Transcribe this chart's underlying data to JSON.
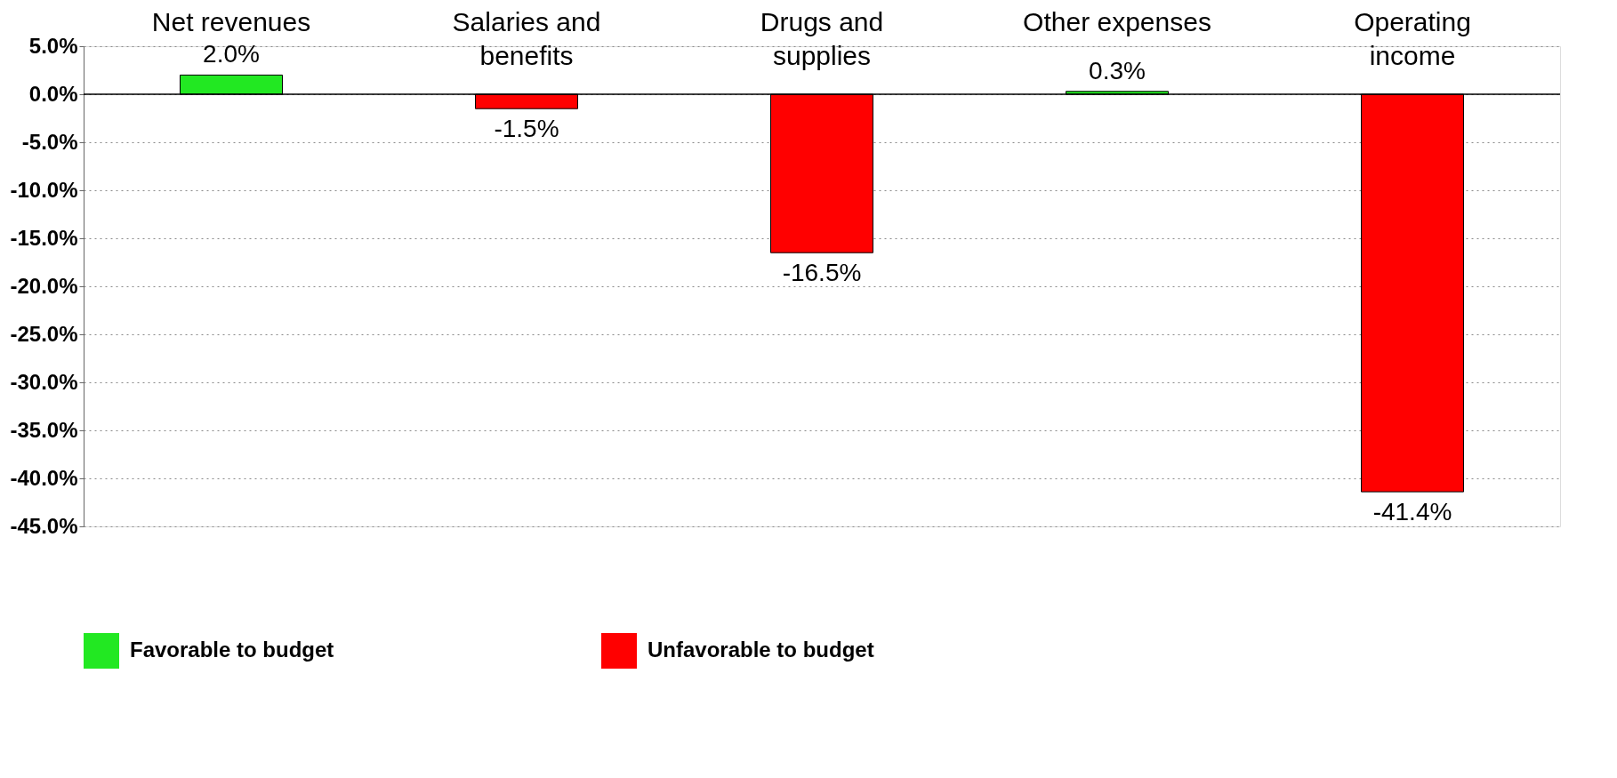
{
  "chart_data": {
    "type": "bar",
    "categories": [
      "Net revenues",
      "Salaries and benefits",
      "Drugs and supplies",
      "Other expenses",
      "Operating income"
    ],
    "series": [
      {
        "name": "Favorable to budget",
        "color": "#22e822",
        "values": [
          2.0,
          null,
          null,
          0.3,
          null
        ],
        "value_labels": [
          "2.0%",
          null,
          null,
          "0.3%",
          null
        ]
      },
      {
        "name": "Unfavorable to budget",
        "color": "#ff0000",
        "values": [
          null,
          -1.5,
          -16.5,
          null,
          -41.4
        ],
        "value_labels": [
          null,
          "-1.5%",
          "-16.5%",
          null,
          "-41.4%"
        ]
      }
    ],
    "ylim": [
      -45,
      5
    ],
    "yticks": [
      {
        "value": 5,
        "label": "5.0%"
      },
      {
        "value": 0,
        "label": "0.0%"
      },
      {
        "value": -5,
        "label": "-5.0%"
      },
      {
        "value": -10,
        "label": "-10.0%"
      },
      {
        "value": -15,
        "label": "-15.0%"
      },
      {
        "value": -20,
        "label": "-20.0%"
      },
      {
        "value": -25,
        "label": "-25.0%"
      },
      {
        "value": -30,
        "label": "-30.0%"
      },
      {
        "value": -35,
        "label": "-35.0%"
      },
      {
        "value": -40,
        "label": "-40.0%"
      },
      {
        "value": -45,
        "label": "-45.0%"
      }
    ],
    "grid": "y",
    "legend": "bottom"
  }
}
